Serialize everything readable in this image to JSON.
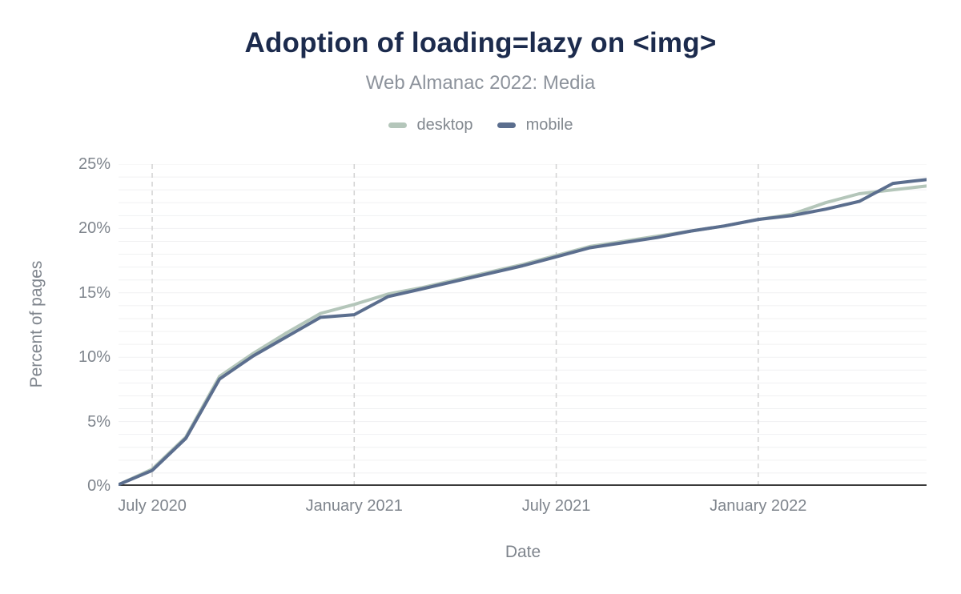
{
  "chart_data": {
    "type": "line",
    "title": "Adoption of loading=lazy on <img>",
    "subtitle": "Web Almanac 2022: Media",
    "xlabel": "Date",
    "ylabel": "Percent of pages",
    "unit": "%",
    "ylim": [
      0,
      25
    ],
    "y_ticks": [
      0,
      5,
      10,
      15,
      20,
      25
    ],
    "y_minor_grid_step": 1,
    "grid": "minor horizontal solid every 1%, dashed vertical at x ticks",
    "legend_position": "top-center",
    "x": [
      "2020-06",
      "2020-07",
      "2020-08",
      "2020-09",
      "2020-10",
      "2020-11",
      "2020-12",
      "2021-01",
      "2021-02",
      "2021-03",
      "2021-04",
      "2021-05",
      "2021-06",
      "2021-07",
      "2021-08",
      "2021-09",
      "2021-10",
      "2021-11",
      "2021-12",
      "2022-01",
      "2022-02",
      "2022-03",
      "2022-04",
      "2022-05",
      "2022-06"
    ],
    "x_ticks": [
      {
        "index": 1,
        "label": "July 2020"
      },
      {
        "index": 7,
        "label": "January 2021"
      },
      {
        "index": 13,
        "label": "July 2021"
      },
      {
        "index": 19,
        "label": "January 2022"
      }
    ],
    "series": [
      {
        "name": "desktop",
        "color": "#b4c6ba",
        "values": [
          0.1,
          1.3,
          3.8,
          8.5,
          10.3,
          11.9,
          13.4,
          14.1,
          14.9,
          15.4,
          16.0,
          16.6,
          17.2,
          17.9,
          18.6,
          19.0,
          19.4,
          19.8,
          20.2,
          20.7,
          21.1,
          22.0,
          22.7,
          23.0,
          23.3
        ]
      },
      {
        "name": "mobile",
        "color": "#5b6e8e",
        "values": [
          0.1,
          1.2,
          3.7,
          8.3,
          10.1,
          11.6,
          13.1,
          13.3,
          14.7,
          15.3,
          15.9,
          16.5,
          17.1,
          17.8,
          18.5,
          18.9,
          19.3,
          19.8,
          20.2,
          20.7,
          21.0,
          21.5,
          22.1,
          23.5,
          23.8
        ]
      }
    ],
    "colors": {
      "title": "#1c2b4d",
      "subtitle": "#8d939c",
      "axis_text": "#7f858d",
      "legend_text": "#82888f",
      "axis_line": "#3a3a3a",
      "minor_grid": "#f0f1f2",
      "dashed_grid": "#d2d2d2",
      "background": "#ffffff"
    }
  }
}
